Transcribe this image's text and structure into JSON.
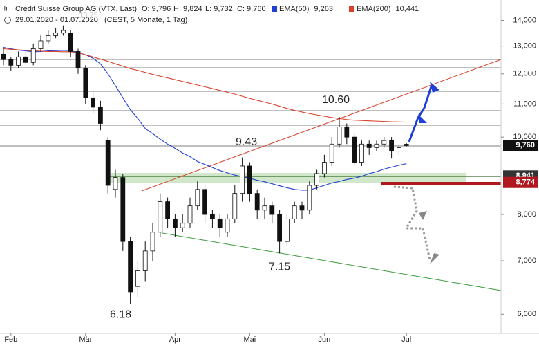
{
  "chart_data": {
    "type": "candlestick",
    "header": {
      "title": "Credit Suisse Group AG (VTX, Last)",
      "ohlc": [
        "O: 9,796",
        "H: 9,824",
        "L: 9,732",
        "C: 9,760"
      ],
      "range": "29.01.2020 - 01.07.2020",
      "info": "(CEST, 5 Monate, 1 Tag)"
    },
    "categories": [
      null,
      "Feb",
      null,
      null,
      null,
      null,
      null,
      null,
      null,
      null,
      null,
      "Mär",
      null,
      null,
      null,
      null,
      null,
      null,
      null,
      null,
      null,
      null,
      null,
      "Apr",
      null,
      null,
      null,
      null,
      null,
      null,
      null,
      null,
      null,
      "Mai",
      null,
      null,
      null,
      null,
      null,
      null,
      null,
      null,
      null,
      "Jun",
      null,
      null,
      null,
      null,
      null,
      null,
      null,
      null,
      null,
      null,
      "Jul"
    ],
    "open": [
      12.7,
      12.5,
      12.3,
      12.6,
      12.4,
      12.9,
      13.2,
      13.4,
      13.5,
      13.5,
      12.8,
      12.2,
      11.2,
      10.9,
      9.9,
      8.6,
      8.9,
      7.4,
      6.5,
      6.8,
      7.2,
      7.6,
      8.3,
      7.9,
      7.7,
      7.8,
      8.2,
      8.6,
      8.0,
      7.9,
      7.6,
      7.9,
      8.5,
      9.2,
      8.5,
      8.1,
      8.2,
      8.0,
      7.4,
      7.9,
      8.2,
      8.1,
      8.7,
      9.0,
      9.3,
      9.8,
      10.3,
      10.0,
      9.3,
      9.8,
      9.7,
      9.8,
      9.9,
      9.6,
      9.796
    ],
    "high": [
      12.9,
      12.6,
      12.8,
      12.8,
      13.1,
      13.4,
      13.6,
      13.7,
      13.8,
      13.6,
      12.9,
      12.3,
      11.4,
      11.1,
      10.0,
      9.1,
      9.0,
      7.5,
      7.0,
      7.4,
      7.8,
      8.5,
      8.4,
      8.0,
      8.0,
      8.4,
      8.8,
      8.7,
      8.1,
      8.0,
      8.0,
      8.7,
      9.43,
      9.3,
      8.6,
      8.4,
      8.3,
      8.1,
      8.0,
      8.3,
      8.3,
      8.8,
      9.1,
      9.5,
      10.0,
      10.6,
      10.4,
      10.1,
      9.9,
      9.9,
      9.9,
      10.0,
      10.0,
      9.8,
      9.824
    ],
    "low": [
      12.3,
      12.1,
      12.2,
      12.3,
      12.3,
      12.8,
      13.1,
      13.3,
      13.4,
      12.6,
      12.0,
      11.0,
      10.7,
      10.2,
      8.5,
      8.4,
      7.2,
      6.18,
      6.3,
      6.6,
      7.0,
      7.5,
      7.7,
      7.5,
      7.6,
      7.7,
      8.1,
      7.8,
      7.7,
      7.5,
      7.5,
      7.8,
      8.3,
      8.3,
      7.9,
      7.9,
      7.8,
      7.15,
      7.3,
      7.8,
      7.9,
      8.0,
      8.6,
      8.9,
      9.2,
      9.7,
      9.8,
      9.2,
      9.2,
      9.5,
      9.6,
      9.7,
      9.4,
      9.5,
      9.732
    ],
    "close": [
      12.5,
      12.3,
      12.6,
      12.4,
      12.9,
      13.2,
      13.4,
      13.5,
      13.6,
      12.8,
      12.2,
      11.2,
      10.9,
      10.4,
      8.7,
      8.9,
      7.4,
      6.4,
      6.8,
      7.2,
      7.6,
      8.3,
      7.9,
      7.7,
      7.8,
      8.2,
      8.6,
      8.0,
      7.9,
      7.7,
      7.9,
      8.5,
      9.2,
      8.5,
      8.1,
      8.2,
      8.0,
      7.4,
      7.9,
      8.2,
      8.1,
      8.7,
      9.0,
      9.3,
      9.8,
      10.3,
      10.0,
      9.3,
      9.8,
      9.7,
      9.8,
      9.9,
      9.6,
      9.7,
      9.76
    ],
    "series": [
      {
        "name": "EMA(50)",
        "color": "#1f3fd6",
        "value_label": "9,263",
        "values": [
          12.95,
          12.9,
          12.85,
          12.82,
          12.79,
          12.8,
          12.82,
          12.83,
          12.84,
          12.83,
          12.76,
          12.68,
          12.55,
          12.35,
          12.0,
          11.6,
          11.2,
          10.82,
          10.55,
          10.25,
          10.1,
          9.94,
          9.8,
          9.68,
          9.55,
          9.45,
          9.32,
          9.24,
          9.16,
          9.08,
          9.02,
          8.96,
          8.92,
          8.88,
          8.83,
          8.79,
          8.74,
          8.69,
          8.64,
          8.6,
          8.58,
          8.58,
          8.64,
          8.7,
          8.76,
          8.8,
          8.85,
          8.88,
          8.93,
          9.0,
          9.05,
          9.12,
          9.17,
          9.22,
          9.263
        ]
      },
      {
        "name": "EMA(200)",
        "color": "#d9412b",
        "value_label": "10,441",
        "values": [
          12.9,
          12.88,
          12.86,
          12.84,
          12.82,
          12.81,
          12.8,
          12.8,
          12.79,
          12.79,
          12.75,
          12.68,
          12.6,
          12.52,
          12.44,
          12.35,
          12.27,
          12.18,
          12.12,
          12.05,
          11.98,
          11.92,
          11.86,
          11.8,
          11.74,
          11.68,
          11.62,
          11.56,
          11.5,
          11.44,
          11.38,
          11.32,
          11.25,
          11.18,
          11.12,
          11.06,
          11.0,
          10.93,
          10.86,
          10.8,
          10.75,
          10.7,
          10.66,
          10.62,
          10.58,
          10.55,
          10.52,
          10.5,
          10.49,
          10.48,
          10.47,
          10.46,
          10.45,
          10.445,
          10.441
        ]
      }
    ],
    "price_labels": [
      {
        "value": 9.76,
        "label": "9,760",
        "color": "#111111"
      },
      {
        "value": 8.941,
        "label": "8,941",
        "color": "#333333"
      },
      {
        "value": 8.774,
        "label": "8,774",
        "color": "#b0171f"
      }
    ],
    "annotations": [
      {
        "value": 10.6,
        "label": "10.60",
        "index": 45
      },
      {
        "value": 9.43,
        "label": "9.43",
        "index": 32
      },
      {
        "value": 7.15,
        "label": "7.15",
        "index": 37
      },
      {
        "value": 6.18,
        "label": "6.18",
        "index": 17
      },
      {
        "value": 13.75,
        "label": "13.75",
        "index": 10
      }
    ],
    "ylim": [
      5.7,
      14.7
    ],
    "log_scale": true,
    "yticks": [
      {
        "value": 6,
        "label": "6,000"
      },
      {
        "value": 7,
        "label": "7,000"
      },
      {
        "value": 8,
        "label": "8,000"
      },
      {
        "value": 10,
        "label": "10,000"
      },
      {
        "value": 11,
        "label": "11,000"
      },
      {
        "value": 12,
        "label": "12,000"
      },
      {
        "value": 13,
        "label": "13,000"
      },
      {
        "value": 14,
        "label": "14,000"
      }
    ]
  }
}
